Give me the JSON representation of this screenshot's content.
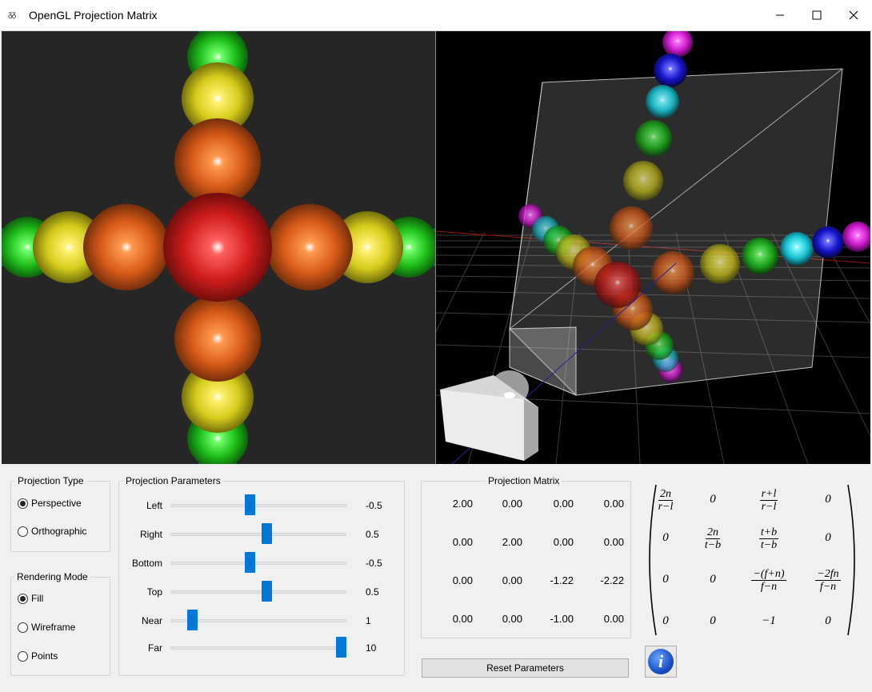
{
  "window": {
    "title": "OpenGL Projection Matrix",
    "icon_name": "app-icon",
    "icon_text": "ᵹᵹ"
  },
  "projection_type": {
    "title": "Projection Type",
    "options": [
      {
        "label": "Perspective",
        "checked": true
      },
      {
        "label": "Orthographic",
        "checked": false
      }
    ]
  },
  "rendering_mode": {
    "title": "Rendering Mode",
    "options": [
      {
        "label": "Fill",
        "checked": true
      },
      {
        "label": "Wireframe",
        "checked": false
      },
      {
        "label": "Points",
        "checked": false
      }
    ]
  },
  "projection_parameters": {
    "title": "Projection Parameters",
    "params": [
      {
        "label": "Left",
        "value": "-0.5",
        "level": 0.45
      },
      {
        "label": "Right",
        "value": "0.5",
        "level": 0.55
      },
      {
        "label": "Bottom",
        "value": "-0.5",
        "level": 0.45
      },
      {
        "label": "Top",
        "value": "0.5",
        "level": 0.55
      },
      {
        "label": "Near",
        "value": "1",
        "level": 0.1
      },
      {
        "label": "Far",
        "value": "10",
        "level": 1.0
      }
    ]
  },
  "projection_matrix": {
    "title": "Projection Matrix",
    "rows": [
      [
        "2.00",
        "0.00",
        "0.00",
        "0.00"
      ],
      [
        "0.00",
        "2.00",
        "0.00",
        "0.00"
      ],
      [
        "0.00",
        "0.00",
        "-1.22",
        "-2.22"
      ],
      [
        "0.00",
        "0.00",
        "-1.00",
        "0.00"
      ]
    ]
  },
  "formula": {
    "rows": [
      [
        {
          "num": "2n",
          "den": "r−l"
        },
        {
          "text": "0"
        },
        {
          "num": "r+l",
          "den": "r−l"
        },
        {
          "text": "0"
        }
      ],
      [
        {
          "text": "0"
        },
        {
          "num": "2n",
          "den": "t−b"
        },
        {
          "num": "t+b",
          "den": "t−b"
        },
        {
          "text": "0"
        }
      ],
      [
        {
          "text": "0"
        },
        {
          "text": "0"
        },
        {
          "num": "−(f+n)",
          "den": "f−n"
        },
        {
          "num": "−2fn",
          "den": "f−n"
        }
      ],
      [
        {
          "text": "0"
        },
        {
          "text": "0"
        },
        {
          "text": "−1"
        },
        {
          "text": "0"
        }
      ]
    ]
  },
  "reset_button": {
    "label": "Reset Parameters"
  },
  "info_button": {
    "label": "i"
  },
  "colors": {
    "accent": "#0078d7",
    "red": "#cc1a1a",
    "orange": "#d9581a",
    "yellow": "#d8d21a",
    "green": "#22c21e",
    "cyan": "#1ad4e0",
    "blue": "#1414d8",
    "magenta": "#d81ad8"
  }
}
